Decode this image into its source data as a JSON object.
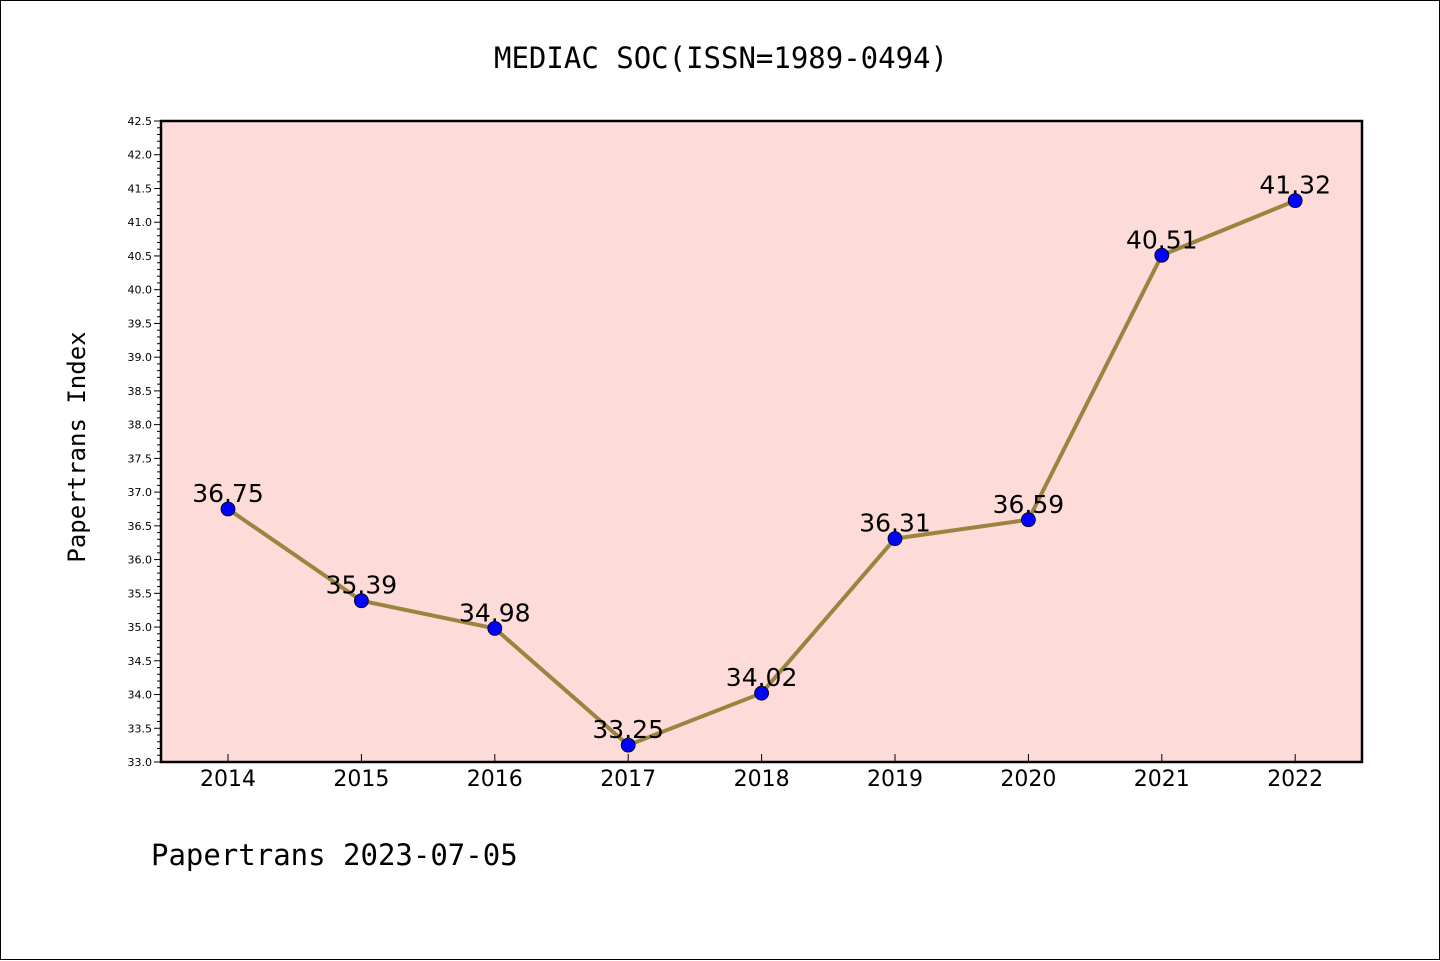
{
  "chart_data": {
    "type": "line",
    "title": "MEDIAC SOC(ISSN=1989-0494)",
    "ylabel": "Papertrans Index",
    "xlabel": "",
    "footer": "Papertrans 2023-07-05",
    "categories": [
      "2014",
      "2015",
      "2016",
      "2017",
      "2018",
      "2019",
      "2020",
      "2021",
      "2022"
    ],
    "series": [
      {
        "values": [
          36.75,
          35.39,
          34.98,
          33.25,
          34.02,
          36.31,
          36.59,
          40.51,
          41.32
        ],
        "labels": [
          "36.75",
          "35.39",
          "34.98",
          "33.25",
          "34.02",
          "36.31",
          "36.59",
          "40.51",
          "41.32"
        ]
      }
    ],
    "ylim": [
      33.0,
      42.5
    ],
    "ytick_step": 0.5,
    "ytick_labels": [
      "33.0",
      "33.5",
      "34.0",
      "34.5",
      "35.0",
      "35.5",
      "36.0",
      "36.5",
      "37.0",
      "37.5",
      "38.0",
      "38.5",
      "39.0",
      "39.5",
      "40.0",
      "40.5",
      "41.0",
      "41.5",
      "42.0",
      "42.5"
    ],
    "grid": false,
    "legend": "none",
    "colors": {
      "plot_background": "#fddbd8",
      "line": "#9a8440",
      "marker": "#0000ff",
      "axis": "#000000"
    }
  }
}
